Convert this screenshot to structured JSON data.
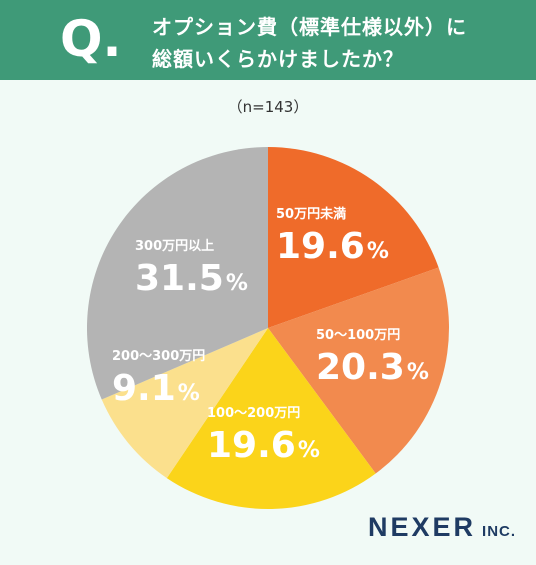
{
  "header": {
    "q_mark": "Q.",
    "question_line1": "オプション費（標準仕様以外）に",
    "question_line2": "総額いくらかけましたか？"
  },
  "sample_size": "（n=143）",
  "chart_data": {
    "type": "pie",
    "title": "",
    "start_angle_deg": 0,
    "direction": "clockwise",
    "slices": [
      {
        "label": "50万円未満",
        "value": 19.6,
        "display": "19.6",
        "unit": "%",
        "color": "#ef6b2a",
        "text_color": "#ffffff"
      },
      {
        "label": "50～100万円",
        "value": 20.3,
        "display": "20.3",
        "unit": "%",
        "color": "#f28a4e",
        "text_color": "#ffffff"
      },
      {
        "label": "100～200万円",
        "value": 19.6,
        "display": "19.6",
        "unit": "%",
        "color": "#fbd41a",
        "text_color": "#ffffff"
      },
      {
        "label": "200～300万円",
        "value": 9.1,
        "display": "9.1",
        "unit": "%",
        "color": "#fbe08d",
        "text_color": "#ffffff"
      },
      {
        "label": "300万円以上",
        "value": 31.5,
        "display": "31.5",
        "unit": "%",
        "color": "#b4b4b4",
        "text_color": "#ffffff"
      }
    ]
  },
  "footer": {
    "logo_main": "NEXER",
    "logo_sub": "INC."
  },
  "colors": {
    "header_bg": "#3f9a78",
    "page_bg": "#f1faf6",
    "logo": "#1f3b63"
  }
}
